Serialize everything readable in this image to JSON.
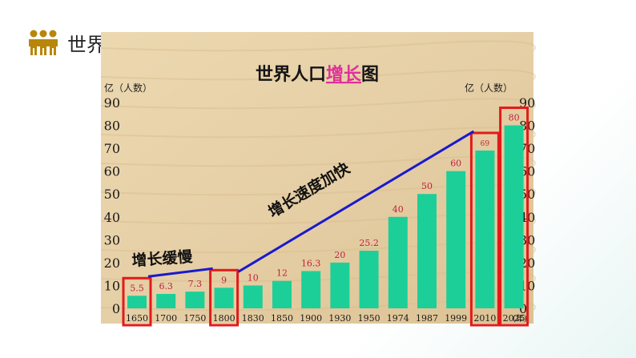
{
  "slide": {
    "title": "世界人口增长",
    "icon": "people-group-icon",
    "icon_color": "#b8860b"
  },
  "chart_data": {
    "type": "bar",
    "title_parts": [
      "世界人口",
      "增长",
      "图"
    ],
    "title_highlight_color": "#e0309a",
    "left_unit_label": "亿（人数）",
    "right_unit_label": "亿（人数）",
    "year_unit_label": "(年)",
    "categories": [
      "1650",
      "1700",
      "1750",
      "1800",
      "1830",
      "1850",
      "1900",
      "1930",
      "1950",
      "1974",
      "1987",
      "1999",
      "2010",
      "2025"
    ],
    "values": [
      5.5,
      6.3,
      7.3,
      9,
      10,
      12,
      16.3,
      20,
      25.2,
      40,
      50,
      60,
      69,
      80
    ],
    "value_labels": [
      "5.5",
      "6.3",
      "7.3",
      "9",
      "10",
      "12",
      "16.3",
      "20",
      "25.2",
      "40",
      "50",
      "60",
      "69",
      "80"
    ],
    "yticks": [
      "0",
      "10",
      "20",
      "30",
      "40",
      "50",
      "60",
      "70",
      "80",
      "90"
    ],
    "ylim": [
      0,
      90
    ],
    "highlighted_categories": [
      "1650",
      "1800",
      "2010",
      "2025"
    ],
    "bar_color": "#1ccf98",
    "highlight_box_color": "#e31a1a",
    "value_label_color": "#c0203c",
    "trend_line_color": "#1a1acc",
    "annotations": [
      {
        "text": "增长缓慢",
        "from": "1650",
        "to": "1800"
      },
      {
        "text": "增长速度加快",
        "from": "1800",
        "to": "2010"
      }
    ],
    "background_color": "#e6cfa6"
  }
}
